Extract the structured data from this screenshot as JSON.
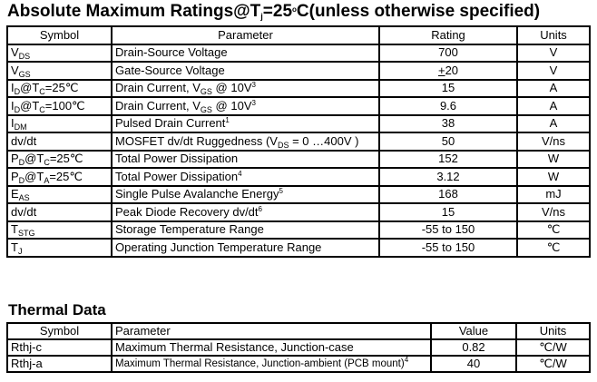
{
  "title": [
    {
      "t": "Absolute Maximum Ratings@T"
    },
    {
      "t": "j",
      "sub": true
    },
    {
      "t": "=25"
    },
    {
      "t": "o",
      "sup": true
    },
    {
      "t": "C(unless otherwise specified)"
    }
  ],
  "ratings": {
    "headers": [
      "Symbol",
      "Parameter",
      "Rating",
      "Units"
    ],
    "rows": [
      {
        "symbol": [
          {
            "t": "V"
          },
          {
            "t": "DS",
            "sub": true
          }
        ],
        "parameter": [
          {
            "t": "Drain-Source Voltage"
          }
        ],
        "rating": "700",
        "units": "V"
      },
      {
        "symbol": [
          {
            "t": "V"
          },
          {
            "t": "GS",
            "sub": true
          }
        ],
        "parameter": [
          {
            "t": "Gate-Source Voltage"
          }
        ],
        "rating_underlined": "+",
        "rating": "20",
        "units": "V"
      },
      {
        "symbol": [
          {
            "t": "I"
          },
          {
            "t": "D",
            "sub": true
          },
          {
            "t": "@T"
          },
          {
            "t": "C",
            "sub": true
          },
          {
            "t": "=25℃"
          }
        ],
        "parameter": [
          {
            "t": "Drain Current, V"
          },
          {
            "t": "GS",
            "sub": true
          },
          {
            "t": " @ 10V"
          },
          {
            "t": "3",
            "sup": true
          }
        ],
        "rating": "15",
        "units": "A"
      },
      {
        "symbol": [
          {
            "t": "I"
          },
          {
            "t": "D",
            "sub": true
          },
          {
            "t": "@T"
          },
          {
            "t": "C",
            "sub": true
          },
          {
            "t": "=100℃"
          }
        ],
        "parameter": [
          {
            "t": "Drain Current, V"
          },
          {
            "t": "GS",
            "sub": true
          },
          {
            "t": " @ 10V"
          },
          {
            "t": "3",
            "sup": true
          }
        ],
        "rating": "9.6",
        "units": "A"
      },
      {
        "symbol": [
          {
            "t": "I"
          },
          {
            "t": "DM",
            "sub": true
          }
        ],
        "parameter": [
          {
            "t": "Pulsed Drain Current"
          },
          {
            "t": "1",
            "sup": true
          }
        ],
        "rating": "38",
        "units": "A"
      },
      {
        "symbol": [
          {
            "t": "dv/dt"
          }
        ],
        "parameter": [
          {
            "t": "MOSFET dv/dt Ruggedness (V"
          },
          {
            "t": "DS",
            "sub": true
          },
          {
            "t": " = 0 …400V )"
          }
        ],
        "rating": "50",
        "units": "V/ns"
      },
      {
        "symbol": [
          {
            "t": "P"
          },
          {
            "t": "D",
            "sub": true
          },
          {
            "t": "@T"
          },
          {
            "t": "C",
            "sub": true
          },
          {
            "t": "=25℃"
          }
        ],
        "parameter": [
          {
            "t": "Total Power Dissipation"
          }
        ],
        "rating": "152",
        "units": "W"
      },
      {
        "symbol": [
          {
            "t": "P"
          },
          {
            "t": "D",
            "sub": true
          },
          {
            "t": "@T"
          },
          {
            "t": "A",
            "sub": true
          },
          {
            "t": "=25℃"
          }
        ],
        "parameter": [
          {
            "t": "Total Power Dissipation"
          },
          {
            "t": "4",
            "sup": true
          }
        ],
        "rating": "3.12",
        "units": "W"
      },
      {
        "symbol": [
          {
            "t": "E"
          },
          {
            "t": "AS",
            "sub": true
          }
        ],
        "parameter": [
          {
            "t": "Single Pulse Avalanche Energy"
          },
          {
            "t": "5",
            "sup": true
          }
        ],
        "rating": "168",
        "units": "mJ"
      },
      {
        "symbol": [
          {
            "t": "dv/dt"
          }
        ],
        "parameter": [
          {
            "t": "Peak Diode Recovery dv/dt"
          },
          {
            "t": "6",
            "sup": true
          }
        ],
        "rating": "15",
        "units": "V/ns"
      },
      {
        "symbol": [
          {
            "t": "T"
          },
          {
            "t": "STG",
            "sub": true
          }
        ],
        "parameter": [
          {
            "t": "Storage Temperature Range"
          }
        ],
        "rating": "-55 to 150",
        "units": "℃"
      },
      {
        "symbol": [
          {
            "t": "T"
          },
          {
            "t": "J",
            "sub": true
          }
        ],
        "parameter": [
          {
            "t": "Operating Junction Temperature Range"
          }
        ],
        "rating": "-55 to 150",
        "units": "℃"
      }
    ]
  },
  "thermal": {
    "title": "Thermal Data",
    "headers": [
      "Symbol",
      "Parameter",
      "Value",
      "Units"
    ],
    "rows": [
      {
        "symbol": [
          {
            "t": "Rthj-c"
          }
        ],
        "parameter": [
          {
            "t": "Maximum Thermal Resistance, Junction-case"
          }
        ],
        "rating": "0.82",
        "units": "℃/W"
      },
      {
        "symbol": [
          {
            "t": "Rthj-a"
          }
        ],
        "parameter": [
          {
            "t": "Maximum Thermal Resistance, Junction-ambient (PCB mount)"
          },
          {
            "t": "4",
            "sup": true
          }
        ],
        "rating": "40",
        "units": "℃/W",
        "small": true
      }
    ]
  }
}
